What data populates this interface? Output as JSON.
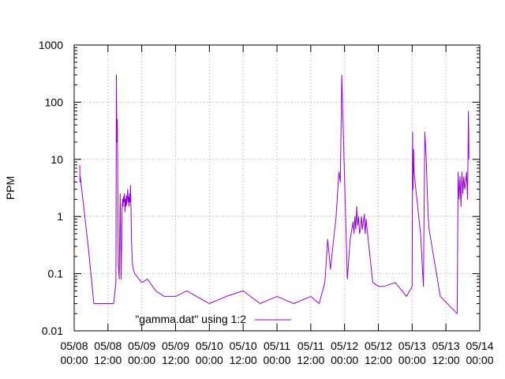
{
  "chart_data": {
    "type": "line",
    "title": "",
    "xlabel": "",
    "ylabel": "PPM",
    "y_scale": "log",
    "ylim": [
      0.01,
      1000
    ],
    "xlim": [
      "2015-05-08T00:00",
      "2015-05-14T00:00"
    ],
    "grid": true,
    "legend": "bottom-left",
    "line_color": "#9400d3",
    "y_ticks": [
      {
        "value": 0.01,
        "label": "0.01"
      },
      {
        "value": 0.1,
        "label": "0.1"
      },
      {
        "value": 1,
        "label": "1"
      },
      {
        "value": 10,
        "label": "10"
      },
      {
        "value": 100,
        "label": "100"
      },
      {
        "value": 1000,
        "label": "1000"
      }
    ],
    "x_ticks": [
      {
        "value": "2015-05-08T00:00",
        "date": "05/08",
        "time": "00:00"
      },
      {
        "value": "2015-05-08T12:00",
        "date": "05/08",
        "time": "12:00"
      },
      {
        "value": "2015-05-09T00:00",
        "date": "05/09",
        "time": "00:00"
      },
      {
        "value": "2015-05-09T12:00",
        "date": "05/09",
        "time": "12:00"
      },
      {
        "value": "2015-05-10T00:00",
        "date": "05/10",
        "time": "00:00"
      },
      {
        "value": "2015-05-10T12:00",
        "date": "05/10",
        "time": "12:00"
      },
      {
        "value": "2015-05-11T00:00",
        "date": "05/11",
        "time": "00:00"
      },
      {
        "value": "2015-05-11T12:00",
        "date": "05/11",
        "time": "12:00"
      },
      {
        "value": "2015-05-12T00:00",
        "date": "05/12",
        "time": "00:00"
      },
      {
        "value": "2015-05-12T12:00",
        "date": "05/12",
        "time": "12:00"
      },
      {
        "value": "2015-05-13T00:00",
        "date": "05/13",
        "time": "00:00"
      },
      {
        "value": "2015-05-13T12:00",
        "date": "05/13",
        "time": "12:00"
      },
      {
        "value": "2015-05-14T00:00",
        "date": "05/14",
        "time": "00:00"
      }
    ],
    "series": [
      {
        "name": "\"gamma.dat\" using 1:2",
        "x": [
          "2015-05-08T02:00",
          "2015-05-08T02:05",
          "2015-05-08T02:10",
          "2015-05-08T05:00",
          "2015-05-08T07:00",
          "2015-05-08T10:00",
          "2015-05-08T14:00",
          "2015-05-08T14:50",
          "2015-05-08T15:00",
          "2015-05-08T15:10",
          "2015-05-08T15:20",
          "2015-05-08T15:40",
          "2015-05-08T16:00",
          "2015-05-08T16:20",
          "2015-05-08T16:40",
          "2015-05-08T17:00",
          "2015-05-08T17:10",
          "2015-05-08T17:20",
          "2015-05-08T17:30",
          "2015-05-08T17:40",
          "2015-05-08T17:50",
          "2015-05-08T18:00",
          "2015-05-08T18:10",
          "2015-05-08T18:20",
          "2015-05-08T18:30",
          "2015-05-08T18:40",
          "2015-05-08T18:50",
          "2015-05-08T19:00",
          "2015-05-08T19:10",
          "2015-05-08T19:20",
          "2015-05-08T19:30",
          "2015-05-08T19:40",
          "2015-05-08T19:50",
          "2015-05-08T20:00",
          "2015-05-08T20:10",
          "2015-05-08T20:20",
          "2015-05-08T20:40",
          "2015-05-08T21:00",
          "2015-05-08T21:30",
          "2015-05-09T00:00",
          "2015-05-09T02:00",
          "2015-05-09T05:00",
          "2015-05-09T08:00",
          "2015-05-09T12:00",
          "2015-05-09T16:00",
          "2015-05-10T00:00",
          "2015-05-10T06:00",
          "2015-05-10T12:00",
          "2015-05-10T18:00",
          "2015-05-11T00:00",
          "2015-05-11T06:00",
          "2015-05-11T12:00",
          "2015-05-11T15:00",
          "2015-05-11T17:00",
          "2015-05-11T18:00",
          "2015-05-11T19:00",
          "2015-05-11T20:00",
          "2015-05-11T21:00",
          "2015-05-11T22:00",
          "2015-05-11T22:30",
          "2015-05-11T23:00",
          "2015-05-12T01:00",
          "2015-05-12T02:00",
          "2015-05-12T03:00",
          "2015-05-12T03:20",
          "2015-05-12T03:40",
          "2015-05-12T04:00",
          "2015-05-12T04:20",
          "2015-05-12T04:40",
          "2015-05-12T05:00",
          "2015-05-12T05:20",
          "2015-05-12T05:40",
          "2015-05-12T06:00",
          "2015-05-12T06:20",
          "2015-05-12T06:40",
          "2015-05-12T07:00",
          "2015-05-12T07:20",
          "2015-05-12T07:40",
          "2015-05-12T08:00",
          "2015-05-12T10:00",
          "2015-05-12T12:00",
          "2015-05-12T14:00",
          "2015-05-12T18:00",
          "2015-05-12T22:00",
          "2015-05-13T00:00",
          "2015-05-13T00:10",
          "2015-05-13T00:20",
          "2015-05-13T00:30",
          "2015-05-13T00:40",
          "2015-05-13T00:50",
          "2015-05-13T03:00",
          "2015-05-13T04:00",
          "2015-05-13T04:30",
          "2015-05-13T05:00",
          "2015-05-13T05:20",
          "2015-05-13T05:40",
          "2015-05-13T06:00",
          "2015-05-13T10:00",
          "2015-05-13T16:00",
          "2015-05-13T16:20",
          "2015-05-13T16:40",
          "2015-05-13T17:00",
          "2015-05-13T17:20",
          "2015-05-13T17:40",
          "2015-05-13T18:00",
          "2015-05-13T18:20",
          "2015-05-13T18:40",
          "2015-05-13T19:00",
          "2015-05-13T19:20",
          "2015-05-13T19:40",
          "2015-05-13T20:00",
          "2015-05-13T20:10"
        ],
        "y": [
          8,
          4,
          5,
          0.3,
          0.03,
          0.03,
          0.03,
          0.07,
          300,
          20,
          50,
          0.15,
          0.08,
          2.5,
          0.08,
          1.2,
          2.0,
          1.5,
          2.2,
          1.8,
          2.5,
          1.2,
          2.0,
          1.5,
          2.3,
          1.6,
          2.2,
          3.0,
          1.8,
          2.2,
          1.5,
          2.5,
          1.8,
          3.5,
          1.4,
          0.4,
          0.15,
          0.12,
          0.1,
          0.07,
          0.08,
          0.05,
          0.04,
          0.04,
          0.05,
          0.03,
          0.04,
          0.05,
          0.03,
          0.04,
          0.03,
          0.04,
          0.03,
          0.07,
          0.4,
          0.12,
          0.35,
          1.0,
          6.0,
          4.0,
          300,
          0.08,
          0.4,
          0.8,
          0.5,
          1.0,
          0.6,
          1.5,
          0.7,
          1.0,
          0.5,
          0.6,
          1.0,
          0.6,
          0.8,
          1.1,
          0.5,
          0.9,
          0.6,
          0.07,
          0.06,
          0.06,
          0.07,
          0.04,
          0.06,
          30,
          3,
          15,
          6,
          5,
          0.5,
          0.06,
          30,
          10,
          3,
          1,
          0.6,
          0.04,
          0.02,
          6,
          2,
          5,
          1.5,
          6,
          2.5,
          5,
          3,
          4,
          6,
          2,
          70,
          10
        ]
      }
    ]
  }
}
